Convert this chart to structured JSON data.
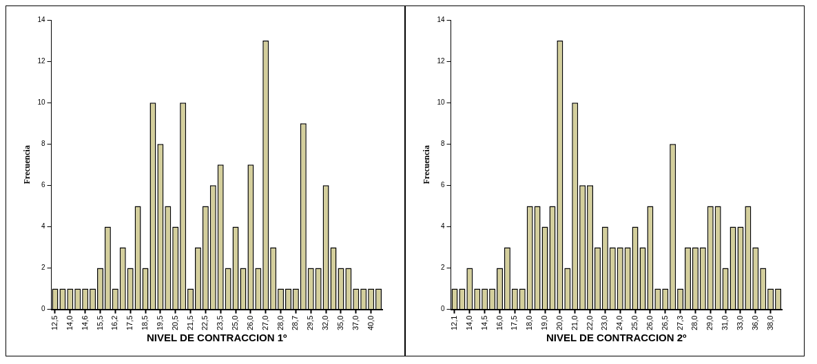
{
  "chart_data": [
    {
      "type": "bar",
      "xlabel": "NIVEL DE CONTRACCION 1º",
      "ylabel": "Frecuencia",
      "color": "#d4cf9c",
      "categories": [
        "12,5",
        null,
        "14,0",
        null,
        "14,6",
        null,
        "15,5",
        null,
        "16,2",
        null,
        "17,5",
        null,
        "18,5",
        null,
        "19,5",
        null,
        "20,5",
        null,
        "21,5",
        null,
        "22,5",
        null,
        "23,5",
        null,
        "25,0",
        null,
        "26,0",
        null,
        "27,0",
        null,
        "28,0",
        null,
        "28,7",
        null,
        "29,5",
        null,
        "32,0",
        null,
        "35,0",
        null,
        "37,0",
        null,
        "40,0",
        null
      ],
      "values": [
        1,
        1,
        1,
        1,
        1,
        1,
        2,
        4,
        1,
        3,
        2,
        5,
        2,
        10,
        8,
        5,
        4,
        10,
        1,
        3,
        5,
        6,
        7,
        2,
        4,
        2,
        7,
        2,
        13,
        3,
        1,
        1,
        1,
        9,
        2,
        2,
        6,
        3,
        2,
        2,
        1,
        1,
        1,
        1
      ],
      "ylim": [
        0,
        14
      ],
      "yticks": [
        0,
        2,
        4,
        6,
        8,
        10,
        12,
        14
      ],
      "grid": false,
      "legend": false
    },
    {
      "type": "bar",
      "xlabel": "NIVEL DE CONTRACCION 2º",
      "ylabel": "Frecuencia",
      "color": "#d4cf9c",
      "categories": [
        "12,1",
        null,
        "14,0",
        null,
        "14,5",
        null,
        "16,0",
        null,
        "17,5",
        null,
        "18,0",
        null,
        "19,0",
        null,
        "20,0",
        null,
        "21,0",
        null,
        "22,0",
        null,
        "23,0",
        null,
        "24,0",
        null,
        "25,0",
        null,
        "26,0",
        null,
        "26,5",
        null,
        "27,3",
        null,
        "28,0",
        null,
        "29,0",
        null,
        "31,0",
        null,
        "33,0",
        null,
        "36,0",
        null,
        "38,0",
        null
      ],
      "values": [
        1,
        1,
        2,
        1,
        1,
        1,
        2,
        3,
        1,
        1,
        5,
        5,
        4,
        5,
        13,
        2,
        10,
        6,
        6,
        3,
        4,
        3,
        3,
        3,
        4,
        3,
        5,
        1,
        1,
        8,
        1,
        3,
        3,
        3,
        5,
        5,
        2,
        4,
        4,
        5,
        3,
        2,
        1,
        1
      ],
      "ylim": [
        0,
        14
      ],
      "yticks": [
        0,
        2,
        4,
        6,
        8,
        10,
        12,
        14
      ],
      "grid": false,
      "legend": false
    }
  ]
}
